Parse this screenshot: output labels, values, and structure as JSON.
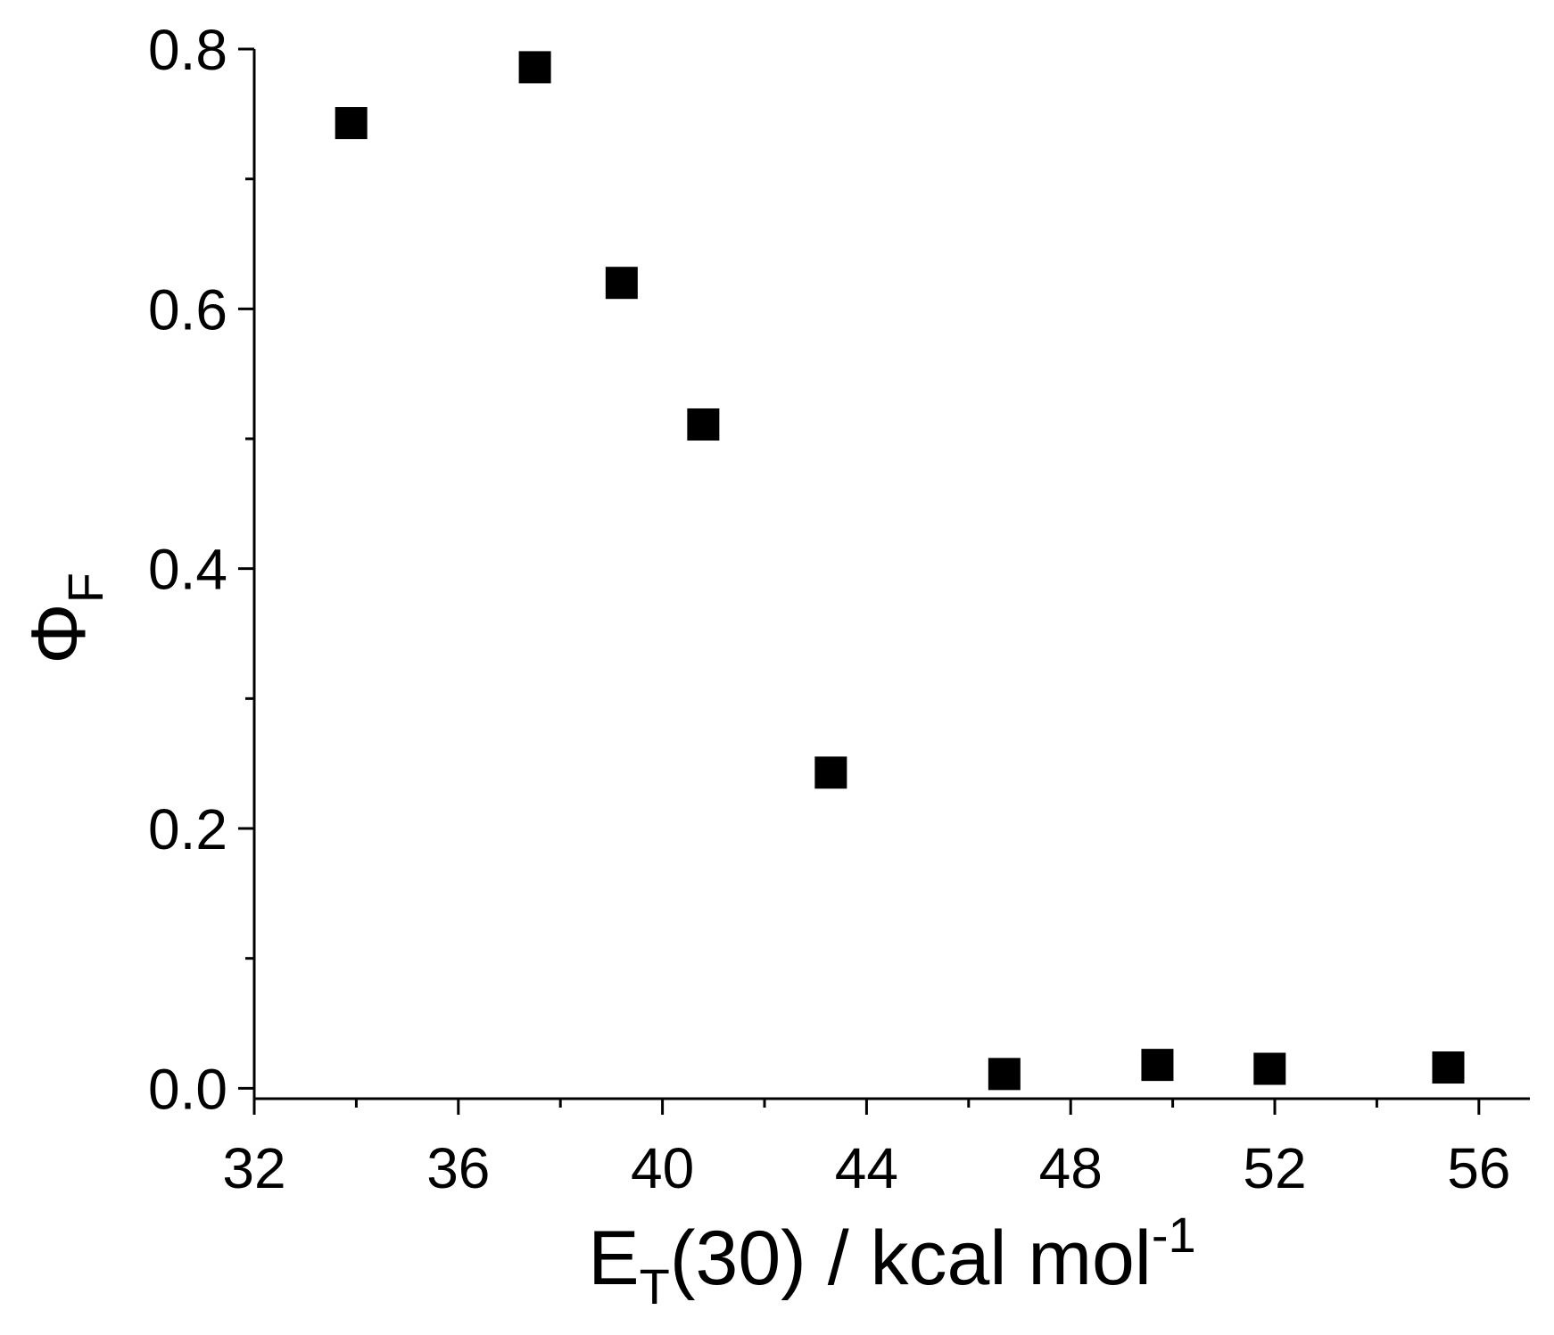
{
  "chart_data": {
    "type": "scatter",
    "title": "",
    "xlabel": {
      "main": "E",
      "sub": "T",
      "rest": "(30) / kcal mol",
      "sup": "-1"
    },
    "ylabel": {
      "main": "Φ",
      "sub": "F"
    },
    "xlim": [
      32,
      57
    ],
    "ylim": [
      -0.008,
      0.8
    ],
    "x_ticks_major": [
      32,
      36,
      40,
      44,
      48,
      52,
      56
    ],
    "x_ticks_minor": [
      34,
      38,
      42,
      46,
      50,
      54
    ],
    "x_tick_labels": [
      "32",
      "36",
      "40",
      "44",
      "48",
      "52",
      "56"
    ],
    "y_ticks_major": [
      0.0,
      0.2,
      0.4,
      0.6,
      0.8
    ],
    "y_ticks_minor": [
      0.1,
      0.3,
      0.5,
      0.7
    ],
    "y_tick_labels": [
      "0.0",
      "0.2",
      "0.4",
      "0.6",
      "0.8"
    ],
    "grid": false,
    "marker": "filled-square",
    "marker_color": "#000000",
    "series": [
      {
        "x": [
          33.9,
          37.5,
          39.2,
          40.8,
          43.3,
          46.7,
          49.7,
          51.9,
          55.4
        ],
        "y": [
          0.743,
          0.786,
          0.62,
          0.511,
          0.243,
          0.011,
          0.018,
          0.015,
          0.016
        ]
      }
    ]
  }
}
